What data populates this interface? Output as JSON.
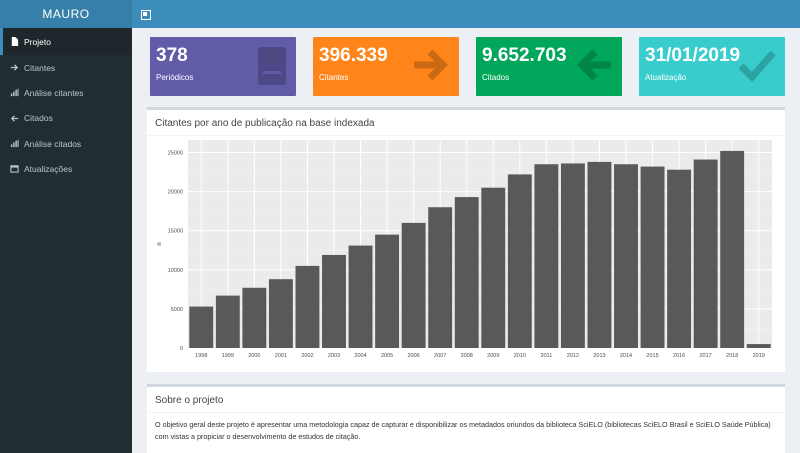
{
  "header": {
    "brand": "MAURO",
    "toggle_icon": "sidebar-toggle-icon"
  },
  "sidebar": {
    "items": [
      {
        "label": "Projeto",
        "icon": "file-icon",
        "active": true
      },
      {
        "label": "Citantes",
        "icon": "arrow-right-icon",
        "active": false
      },
      {
        "label": "Análise citantes",
        "icon": "bar-chart-icon",
        "active": false
      },
      {
        "label": "Citados",
        "icon": "arrow-left-icon",
        "active": false
      },
      {
        "label": "Análise citados",
        "icon": "bar-chart-icon",
        "active": false
      },
      {
        "label": "Atualizações",
        "icon": "calendar-icon",
        "active": false
      }
    ]
  },
  "value_boxes": [
    {
      "value": "378",
      "label": "Periódicos",
      "color": "#605ca8",
      "icon": "book-icon"
    },
    {
      "value": "396.339",
      "label": "Citantes",
      "color": "#ff851b",
      "icon": "arrow-right-icon"
    },
    {
      "value": "9.652.703",
      "label": "Citados",
      "color": "#00a65a",
      "icon": "arrow-left-icon"
    },
    {
      "value": "31/01/2019",
      "label": "Atualização",
      "color": "#39cccc",
      "icon": "check-icon"
    }
  ],
  "chart_panel": {
    "title": "Citantes por ano de publicação na base indexada"
  },
  "chart_data": {
    "type": "bar",
    "title": "",
    "xlabel": "",
    "ylabel": "n",
    "categories": [
      "1998",
      "1999",
      "2000",
      "2001",
      "2002",
      "2003",
      "2004",
      "2005",
      "2006",
      "2007",
      "2008",
      "2009",
      "2010",
      "2011",
      "2012",
      "2013",
      "2014",
      "2015",
      "2016",
      "2017",
      "2018",
      "2019"
    ],
    "values": [
      5300,
      6700,
      7700,
      8800,
      10500,
      11900,
      13100,
      14500,
      16000,
      18000,
      19300,
      20500,
      22200,
      23500,
      23600,
      23800,
      23500,
      23200,
      22800,
      24100,
      25200,
      500
    ],
    "yticks": [
      0,
      5000,
      10000,
      15000,
      20000,
      25000
    ],
    "ylim": [
      0,
      26600
    ],
    "grid": true,
    "bar_color": "#595959",
    "panel_bg": "#ebebeb"
  },
  "about_panel": {
    "title": "Sobre o projeto",
    "text": "O objetivo geral deste projeto é apresentar uma metodologia capaz de capturar e disponibilizar os metadados oriundos da biblioteca SciELO (bibliotecas SciELO Brasil e SciELO Saúde Pública) com vistas a propiciar o desenvolvimento de estudos de citação."
  }
}
